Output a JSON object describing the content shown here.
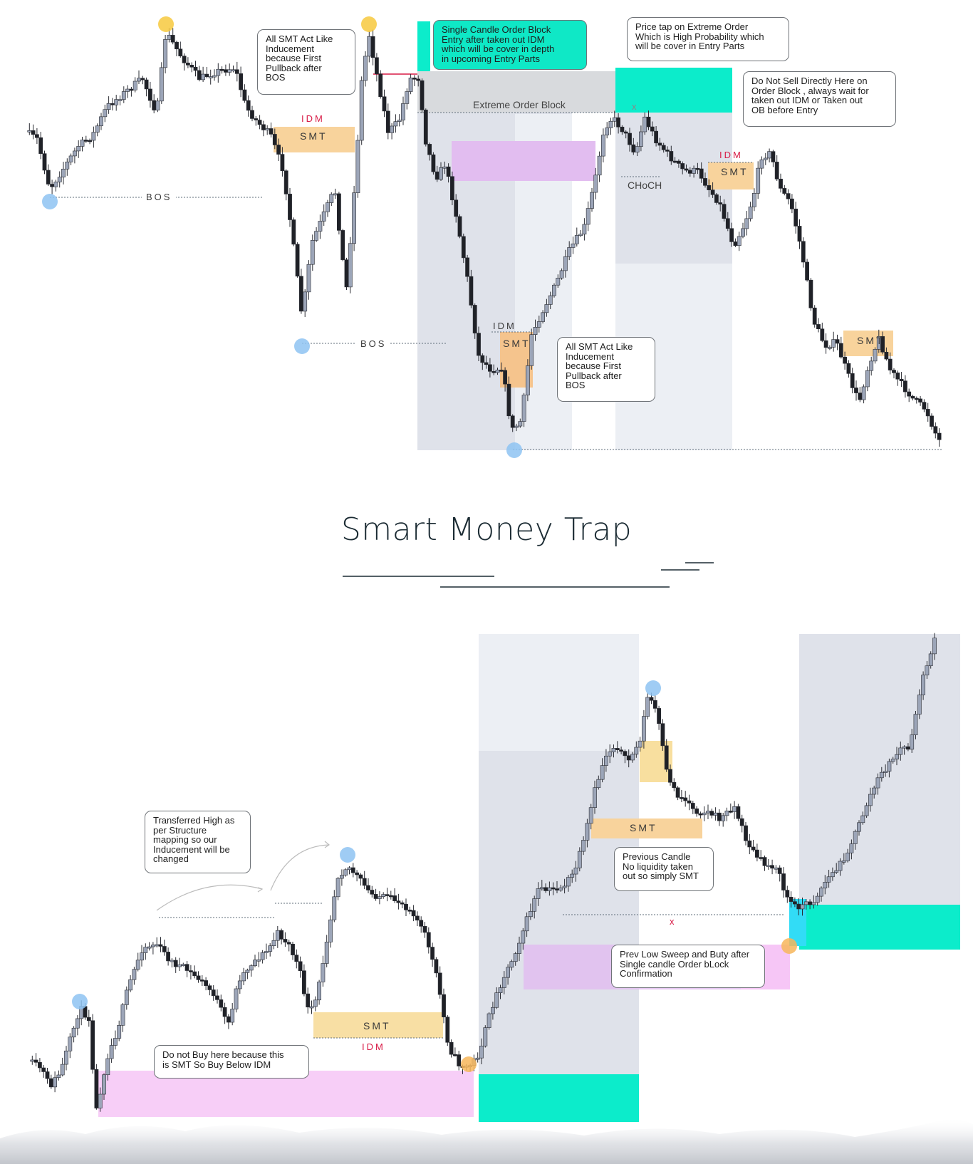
{
  "title": "Smart Money Trap",
  "colors": {
    "candle_bull": "#9ca5b8",
    "candle_bear": "#1f2127",
    "zone_grey": "#dfe2ea",
    "zone_light": "#eceff4",
    "order_block": "#0ceccb",
    "smt_zone": "#f8d39c",
    "pink_zone": "#f6c6f6",
    "purple_zone": "#e2bdf0",
    "idm_red": "#d81b46",
    "swing_high": "#f7c93e",
    "swing_low": "#8ec3f2"
  },
  "top_chart": {
    "bubbles": [
      {
        "text": "All SMT Act Like\nInducement\nbecause First\nPullback after\nBOS"
      },
      {
        "text": "Single Candle Order Block\nEntry after taken out IDM\nwhich will be cover in depth\nin upcoming Entry Parts"
      },
      {
        "text": "Price tap on Extreme Order\nWhich is High Probability which\nwill be cover in Entry Parts"
      },
      {
        "text": "Do Not Sell Directly Here on\nOrder Block , always wait for\ntaken out IDM or Taken out\nOB before Entry"
      },
      {
        "text": "All SMT Act Like\nInducement\nbecause First\nPullback after\nBOS"
      }
    ],
    "labels": {
      "idm": "IDM",
      "smt": "SMT",
      "bos": "BOS",
      "extreme_order_block": "Extreme Order Block",
      "choch": "CHoCH",
      "x": "x"
    }
  },
  "bottom_chart": {
    "bubbles": [
      {
        "text": "Transferred High as\nper Structure\nmapping so our\nInducement will be\nchanged"
      },
      {
        "text": "Do not Buy here because this\nis SMT So Buy Below IDM"
      },
      {
        "text": "Previous Candle\nNo liquidity taken\nout so simply SMT"
      },
      {
        "text": "Prev Low Sweep and Buty after\nSingle candle Order bLock\nConfirmation"
      }
    ],
    "labels": {
      "smt": "SMT",
      "idm": "IDM",
      "x": "x"
    }
  }
}
